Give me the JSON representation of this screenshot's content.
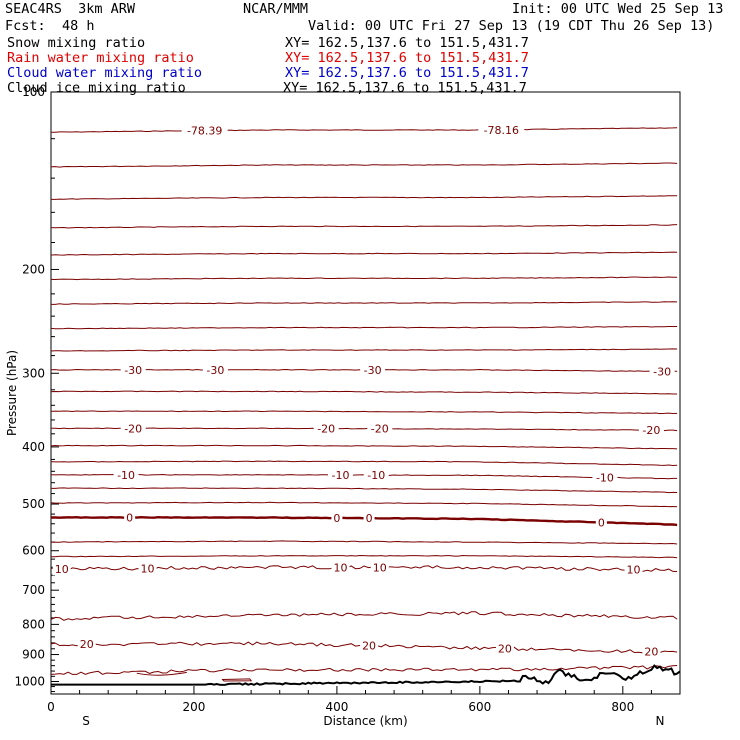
{
  "header": {
    "model": "SEAC4RS  3km ARW",
    "org": "NCAR/MMM",
    "init": "Init: 00 UTC Wed 25 Sep 13",
    "fcst_label": "Fcst:",
    "fcst_value": "48 h",
    "valid": "Valid: 00 UTC Fri 27 Sep 13 (19 CDT Thu 26 Sep 13)"
  },
  "fields": [
    {
      "name": "Snow mixing ratio",
      "xy": "XY= 162.5,137.6 to 151.5,431.7",
      "color": "#000000"
    },
    {
      "name": "Rain water mixing ratio",
      "xy": "XY= 162.5,137.6 to 151.5,431.7",
      "color": "#e00000"
    },
    {
      "name": "Cloud water mixing ratio",
      "xy": "XY= 162.5,137.6 to 151.5,431.7",
      "color": "#0000cc"
    },
    {
      "name": "Cloud ice mixing ratio",
      "xy": "XY= 162.5,137.6 to 151.5,431.7",
      "color": "#000000"
    }
  ],
  "chart_data": {
    "type": "line",
    "xlabel": "Distance (km)",
    "ylabel": "Pressure (hPa)",
    "xlim": [
      0,
      880
    ],
    "ylim": [
      1050,
      100
    ],
    "y_scale": "log",
    "x_ticks": [
      0,
      200,
      400,
      600,
      800
    ],
    "y_ticks": [
      100,
      200,
      300,
      400,
      500,
      600,
      700,
      800,
      900,
      1000
    ],
    "x_end_labels": {
      "left": "S",
      "right": "N"
    },
    "contour_color": "#7a0000",
    "terrain_color": "#000000",
    "isotherms": [
      {
        "pressure": [
          117,
          116,
          116,
          115
        ],
        "labels": [
          {
            "text": "-78.39",
            "x": 215
          },
          {
            "text": "-78.16",
            "x": 630
          }
        ]
      },
      {
        "pressure": [
          134,
          133,
          133,
          132
        ]
      },
      {
        "pressure": [
          152,
          151,
          151,
          150
        ]
      },
      {
        "pressure": [
          170,
          169,
          169,
          168
        ]
      },
      {
        "pressure": [
          189,
          188,
          188,
          187
        ]
      },
      {
        "pressure": [
          208,
          207,
          207,
          206
        ]
      },
      {
        "pressure": [
          229,
          228,
          228,
          227
        ]
      },
      {
        "pressure": [
          252,
          251,
          251,
          250
        ]
      },
      {
        "pressure": [
          275,
          274,
          274,
          273
        ]
      },
      {
        "pressure": [
          296,
          296,
          296,
          298
        ],
        "value": -30,
        "labels": [
          {
            "text": "-30",
            "x": 115
          },
          {
            "text": "-30",
            "x": 230
          },
          {
            "text": "-30",
            "x": 450
          },
          {
            "text": "-30",
            "x": 855
          }
        ]
      },
      {
        "pressure": [
          322,
          322,
          323,
          325
        ]
      },
      {
        "pressure": [
          348,
          348,
          349,
          351
        ]
      },
      {
        "pressure": [
          372,
          372,
          373,
          375
        ],
        "value": -20,
        "labels": [
          {
            "text": "-20",
            "x": 115
          },
          {
            "text": "-20",
            "x": 385
          },
          {
            "text": "-20",
            "x": 460
          },
          {
            "text": "-20",
            "x": 840
          }
        ]
      },
      {
        "pressure": [
          398,
          398,
          399,
          403
        ]
      },
      {
        "pressure": [
          424,
          423,
          424,
          430
        ]
      },
      {
        "pressure": [
          446,
          446,
          447,
          453
        ],
        "value": -10,
        "labels": [
          {
            "text": "-10",
            "x": 105
          },
          {
            "text": "-10",
            "x": 405
          },
          {
            "text": "-10",
            "x": 455
          },
          {
            "text": "-10",
            "x": 775
          }
        ]
      },
      {
        "pressure": [
          470,
          470,
          472,
          478
        ]
      },
      {
        "pressure": [
          498,
          497,
          499,
          505
        ]
      },
      {
        "pressure": [
          527,
          527,
          530,
          542
        ],
        "value": 0,
        "bold": true,
        "labels": [
          {
            "text": "0",
            "x": 110
          },
          {
            "text": "0",
            "x": 400
          },
          {
            "text": "0",
            "x": 445
          },
          {
            "text": "0",
            "x": 770
          }
        ]
      },
      {
        "pressure": [
          580,
          578,
          580,
          584
        ]
      },
      {
        "pressure": [
          614,
          612,
          612,
          616
        ]
      },
      {
        "pressure": [
          645,
          640,
          640,
          648
        ],
        "value": 10,
        "labels": [
          {
            "text": "10",
            "x": 15
          },
          {
            "text": "10",
            "x": 135
          },
          {
            "text": "10",
            "x": 405
          },
          {
            "text": "10",
            "x": 460
          },
          {
            "text": "10",
            "x": 815
          }
        ]
      },
      {
        "pressure": [
          783,
          772,
          766,
          780
        ]
      },
      {
        "pressure": [
          865,
          862,
          877,
          892
        ],
        "value": 20,
        "labels": [
          {
            "text": "20",
            "x": 50
          },
          {
            "text": "20",
            "x": 445
          },
          {
            "text": "20",
            "x": 635
          },
          {
            "text": "20",
            "x": 840
          }
        ]
      },
      {
        "pressure": [
          970,
          955,
          955,
          945
        ]
      }
    ]
  }
}
